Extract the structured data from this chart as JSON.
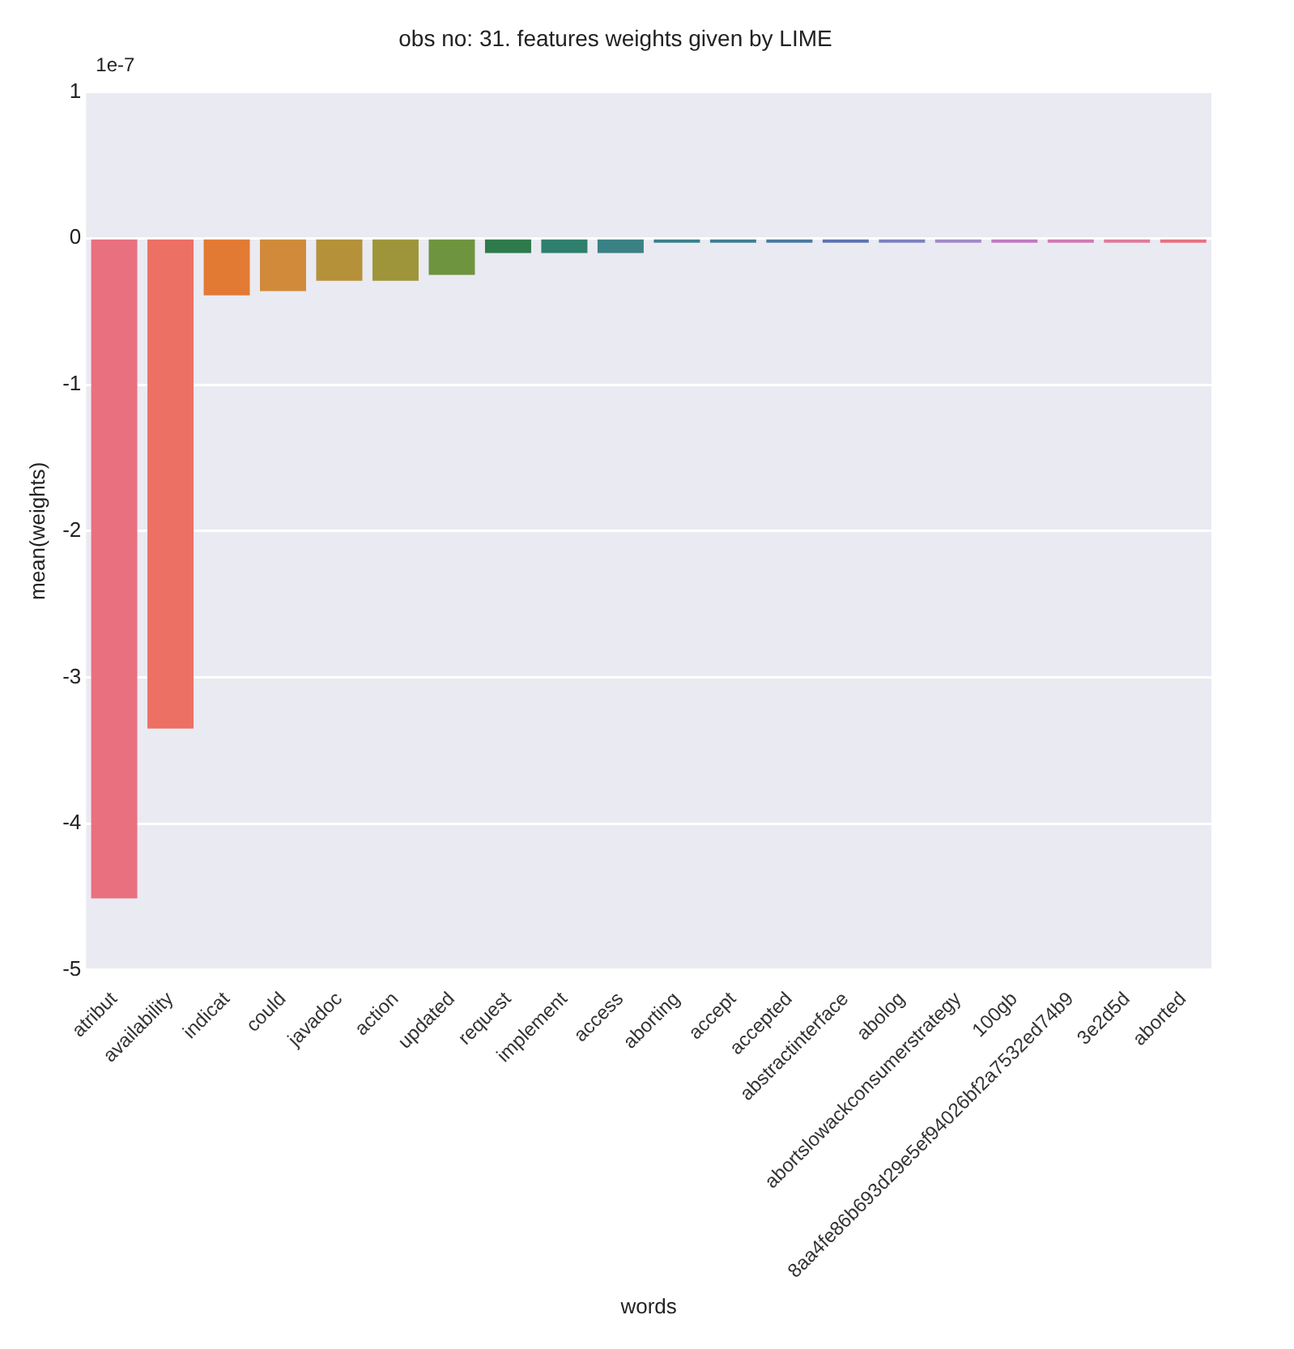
{
  "chart_data": {
    "type": "bar",
    "title": "obs no: 31. features weights given by LIME",
    "xlabel": "words",
    "ylabel": "mean(weights)",
    "annotations": [
      "1e-7"
    ],
    "categories": [
      "atribut",
      "availability",
      "indicat",
      "could",
      "javadoc",
      "action",
      "updated",
      "request",
      "implement",
      "access",
      "aborting",
      "accept",
      "accepted",
      "abstractinterface",
      "abolog",
      "abortslowackconsumerstrategy",
      "100gb",
      "8aa4fe86b693d29e5ef94026bf2a7532ed74b9",
      "3e2d5d",
      "aborted"
    ],
    "values": [
      -4.51,
      -3.35,
      -0.39,
      -0.36,
      -0.29,
      -0.29,
      -0.25,
      -0.1,
      -0.1,
      -0.1,
      -0.03,
      -0.03,
      -0.03,
      -0.03,
      -0.03,
      -0.03,
      -0.03,
      -0.03,
      -0.03,
      -0.03
    ],
    "colors": [
      "#e8707f",
      "#ec7063",
      "#e27a33",
      "#d08a3a",
      "#b5913a",
      "#9e953a",
      "#6f943f",
      "#2e7a4a",
      "#2f7f6e",
      "#3a8185",
      "#3a7f8a",
      "#3f7c95",
      "#4a7aa0",
      "#5d73b0",
      "#7d80c0",
      "#a08ac8",
      "#c07ac0",
      "#d078b0",
      "#e07a9a",
      "#e8707f"
    ],
    "ylim": [
      -5,
      1
    ],
    "yticks": [
      -5,
      -4,
      -3,
      -2,
      -1,
      0,
      1
    ],
    "grid": "y",
    "legend": false
  }
}
